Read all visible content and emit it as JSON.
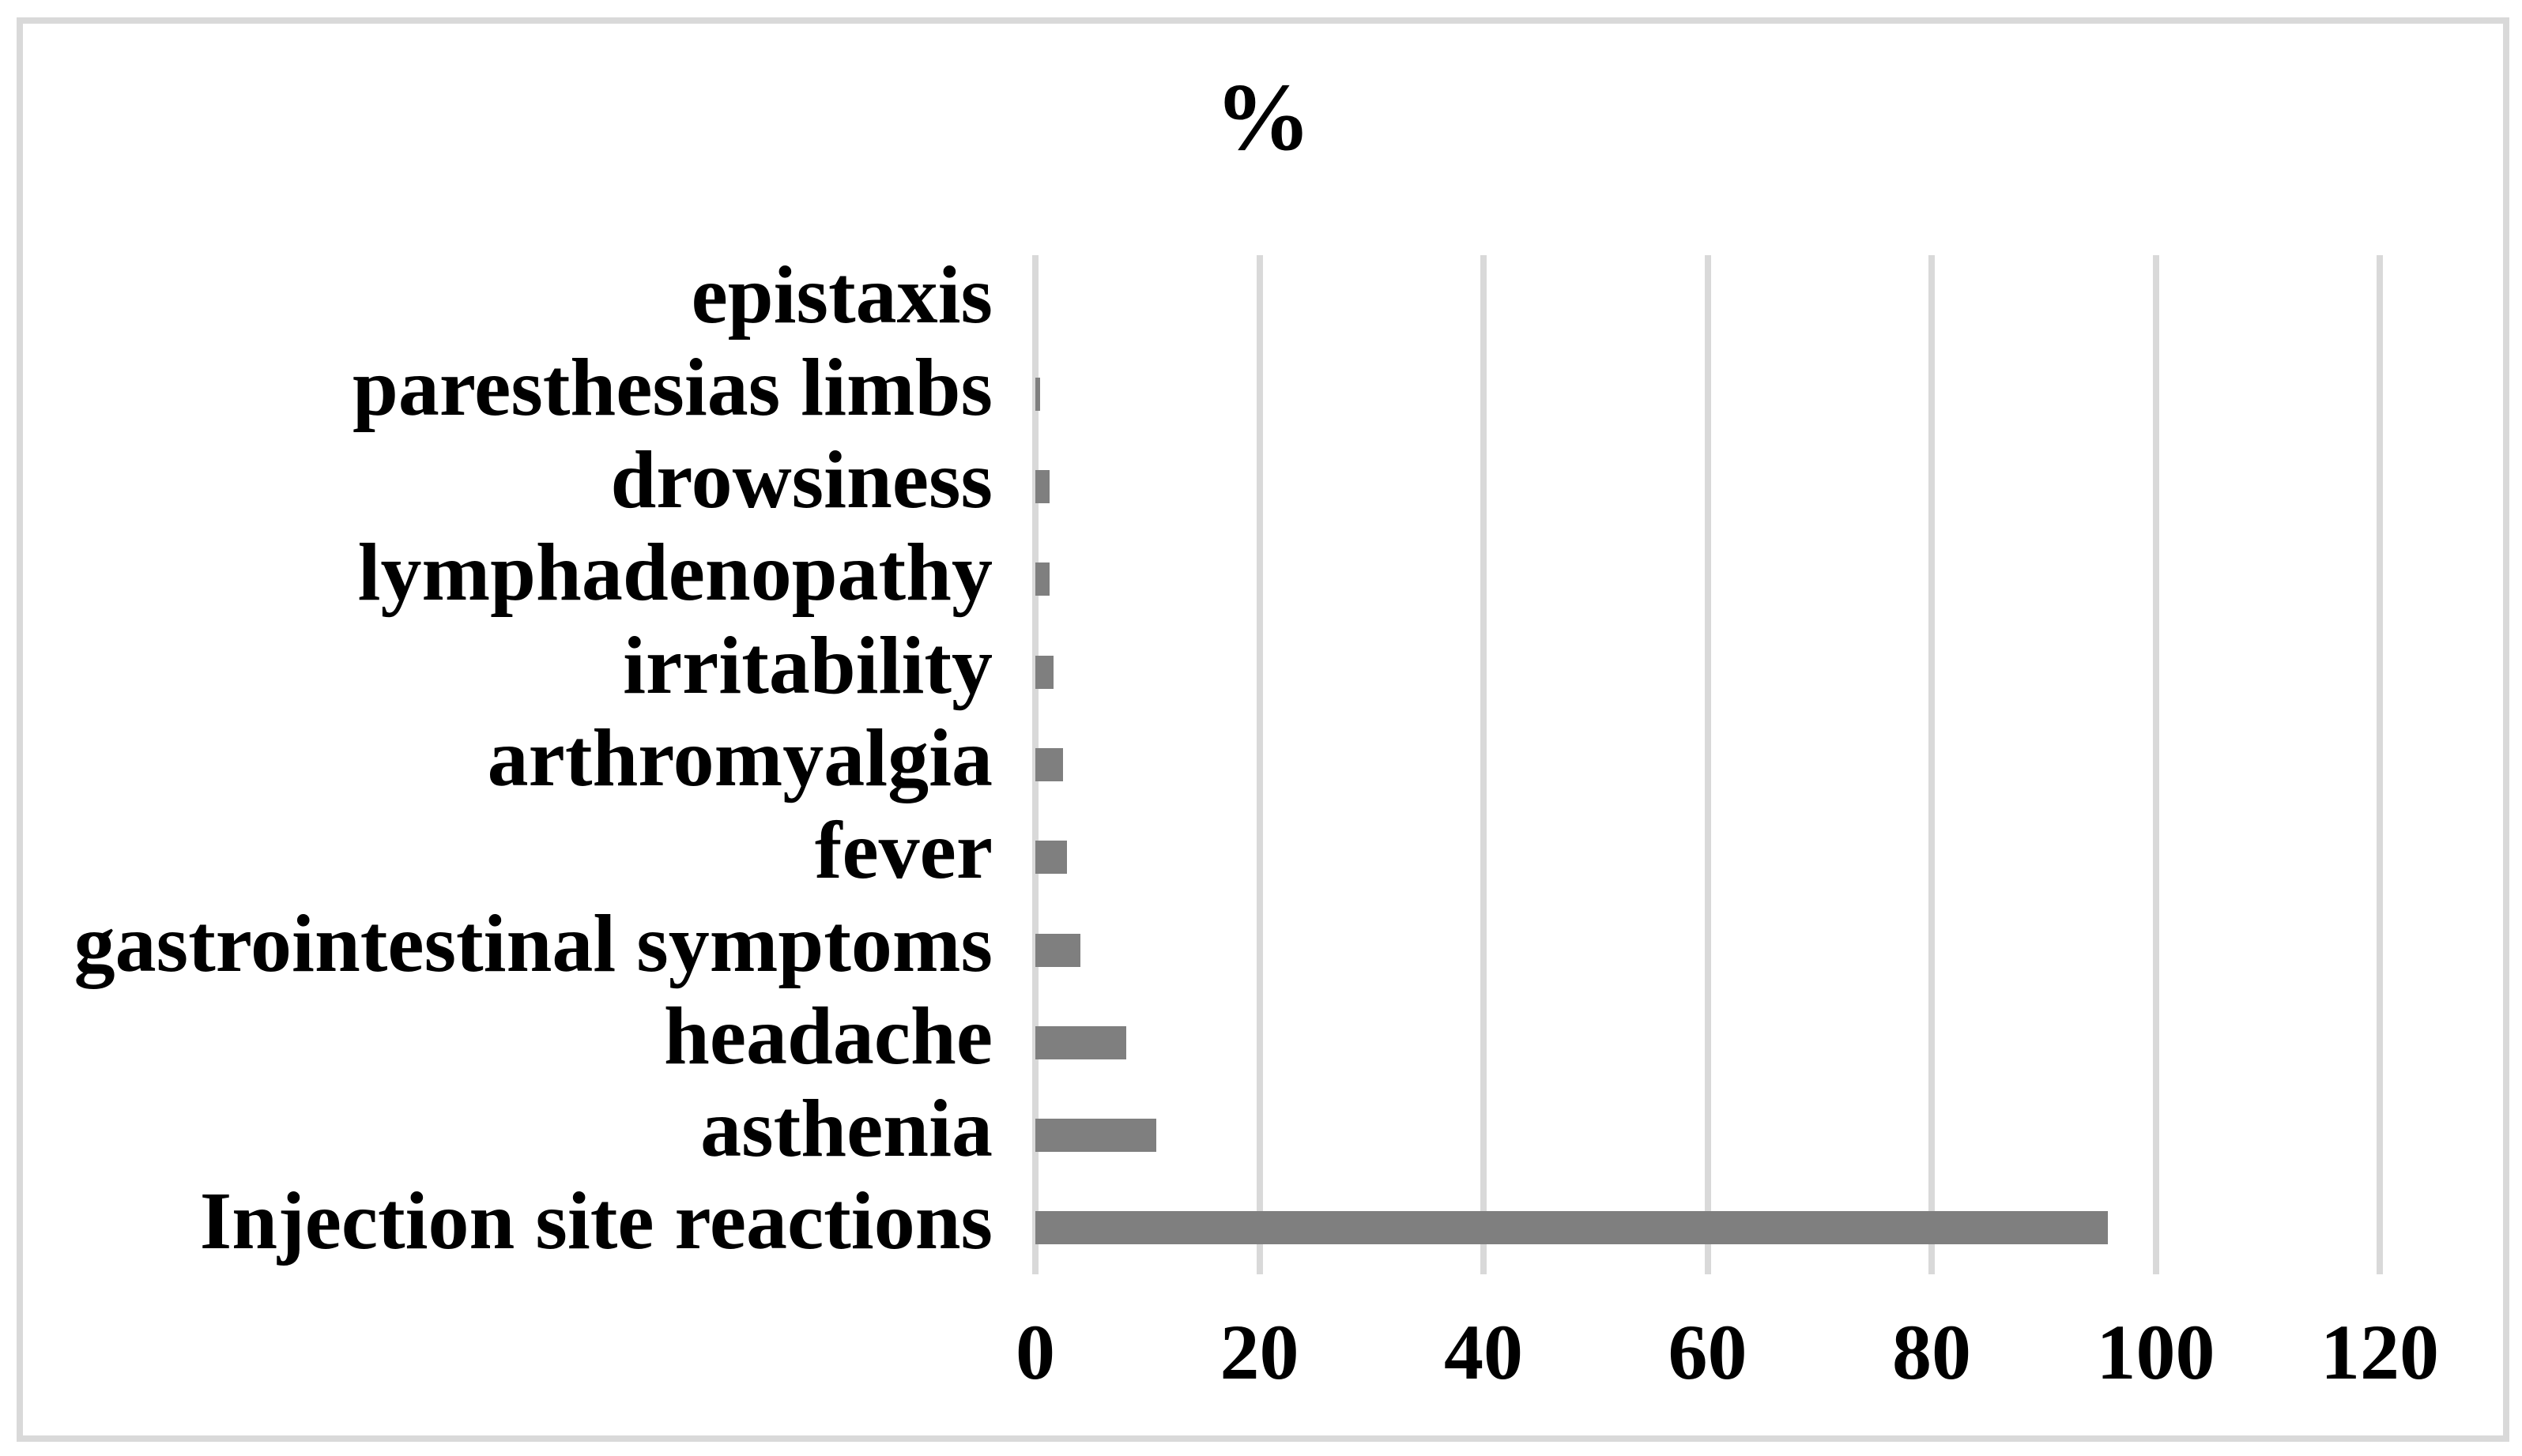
{
  "figure": {
    "background_color": "#ffffff",
    "border_color": "#d9d9d9"
  },
  "chart_data": {
    "type": "bar",
    "orientation": "horizontal",
    "title": "%",
    "categories": [
      "epistaxis",
      "paresthesias limbs",
      "drowsiness",
      "lymphadenopathy",
      "irritability",
      "arthromyalgia",
      "fever",
      "gastrointestinal symptoms",
      "headache",
      "asthenia",
      "Injection site reactions"
    ],
    "values": [
      0,
      0.4,
      1.3,
      1.3,
      1.6,
      2.5,
      2.8,
      4.0,
      8.1,
      10.8,
      95.7
    ],
    "xlabel": "",
    "ylabel": "",
    "xticks": [
      0,
      20,
      40,
      60,
      80,
      100,
      120
    ],
    "xlim": [
      0,
      120
    ],
    "grid": "vertical",
    "legend": "none",
    "bar_color": "#7f7f7f",
    "gridline_color": "#d9d9d9",
    "text_color": "#000000"
  }
}
